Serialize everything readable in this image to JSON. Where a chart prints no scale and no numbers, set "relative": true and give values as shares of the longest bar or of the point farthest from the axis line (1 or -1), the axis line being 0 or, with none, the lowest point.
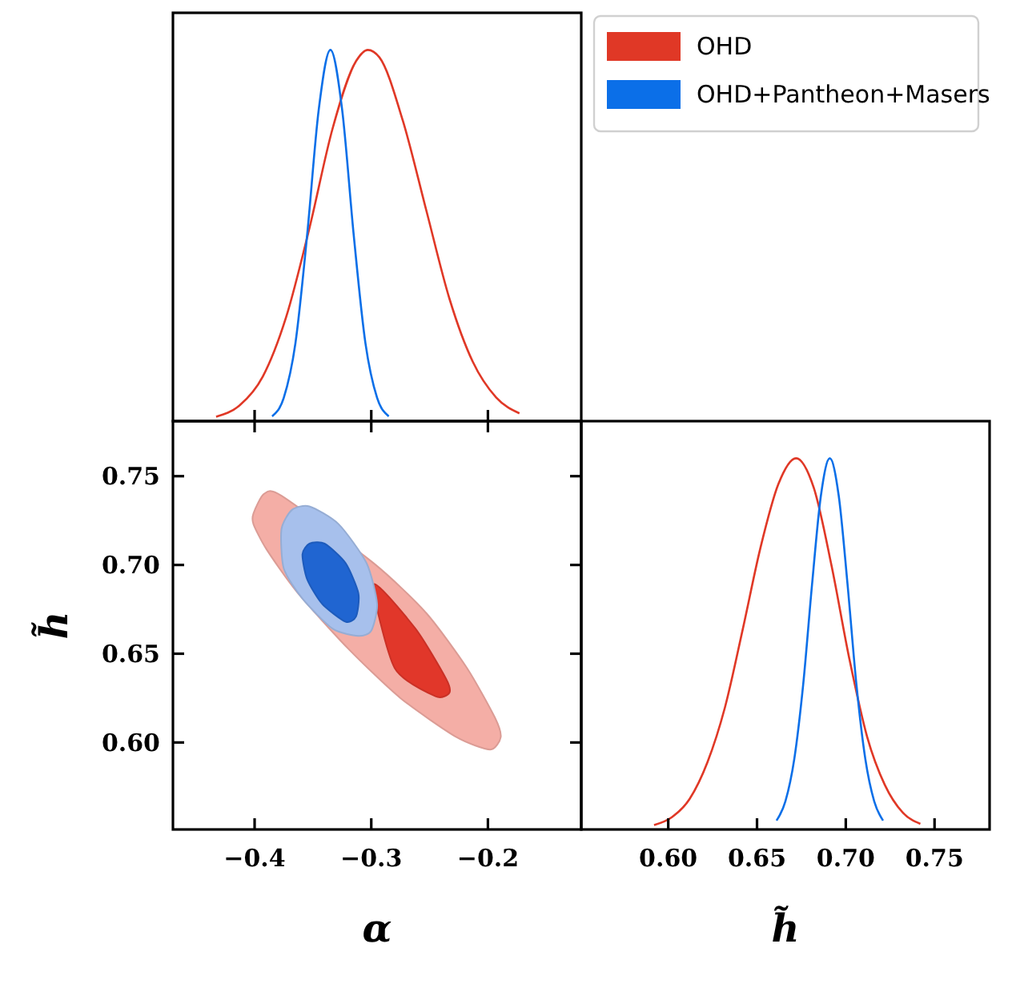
{
  "chart_data": [
    {
      "type": "line",
      "relative": true,
      "tick_labels": false,
      "legend": "top right",
      "xlim": [
        -0.47,
        -0.12
      ],
      "xticks": [
        {
          "value": -0.4,
          "label": null
        },
        {
          "value": -0.3,
          "label": null
        },
        {
          "value": -0.2,
          "label": null
        }
      ],
      "series": [
        {
          "name": "OHD",
          "color": "#e03826",
          "x": [
            -0.433,
            -0.413,
            -0.393,
            -0.373,
            -0.353,
            -0.333,
            -0.313,
            -0.303,
            -0.293,
            -0.273,
            -0.253,
            -0.233,
            -0.213,
            -0.193,
            -0.173
          ],
          "values": [
            0.012,
            0.042,
            0.12,
            0.28,
            0.52,
            0.79,
            0.97,
            1,
            0.98,
            0.81,
            0.57,
            0.33,
            0.16,
            0.064,
            0.021
          ]
        },
        {
          "name": "OHD+Pantheon+Masers",
          "color": "#0b6fe8",
          "x": [
            -0.385,
            -0.375,
            -0.365,
            -0.355,
            -0.345,
            -0.335,
            -0.325,
            -0.315,
            -0.305,
            -0.295,
            -0.285
          ],
          "values": [
            0.013,
            0.063,
            0.21,
            0.5,
            0.84,
            1,
            0.84,
            0.5,
            0.21,
            0.063,
            0.013
          ]
        }
      ]
    },
    {
      "type": "area",
      "xlabel": "α",
      "ylabel": "h̃",
      "xlim": [
        -0.47,
        -0.12
      ],
      "ylim": [
        0.551,
        0.781
      ],
      "xticks": [
        {
          "value": -0.4,
          "label": "−0.4"
        },
        {
          "value": -0.3,
          "label": "−0.3"
        },
        {
          "value": -0.2,
          "label": "−0.2"
        }
      ],
      "yticks": [
        {
          "value": 0.6,
          "label": "0.60"
        },
        {
          "value": 0.65,
          "label": "0.65"
        },
        {
          "value": 0.7,
          "label": "0.70"
        },
        {
          "value": 0.75,
          "label": "0.75"
        }
      ],
      "series": [
        {
          "color": "#f4aea6",
          "x": [
            -0.401,
            -0.392,
            -0.377,
            -0.298,
            -0.253,
            -0.218,
            -0.194,
            -0.189,
            -0.198,
            -0.227,
            -0.275,
            -0.32,
            -0.364,
            -0.39,
            -0.401
          ],
          "values": [
            0.729,
            0.74,
            0.739,
            0.701,
            0.673,
            0.642,
            0.614,
            0.603,
            0.596,
            0.603,
            0.625,
            0.653,
            0.685,
            0.709,
            0.723
          ]
        },
        {
          "color": "#e1372a",
          "x": [
            -0.298,
            -0.262,
            -0.236,
            -0.233,
            -0.245,
            -0.28
          ],
          "values": [
            0.689,
            0.664,
            0.636,
            0.628,
            0.626,
            0.642
          ]
        },
        {
          "color": "#a7c0ec",
          "x": [
            -0.377,
            -0.368,
            -0.353,
            -0.328,
            -0.304,
            -0.295,
            -0.3,
            -0.311,
            -0.333,
            -0.359,
            -0.375
          ],
          "values": [
            0.72,
            0.731,
            0.733,
            0.723,
            0.701,
            0.678,
            0.663,
            0.66,
            0.664,
            0.681,
            0.698
          ]
        },
        {
          "color": "#2065d1",
          "x": [
            -0.359,
            -0.353,
            -0.34,
            -0.322,
            -0.311,
            -0.313,
            -0.322,
            -0.342,
            -0.355
          ],
          "values": [
            0.706,
            0.712,
            0.712,
            0.701,
            0.684,
            0.671,
            0.668,
            0.678,
            0.692
          ]
        }
      ]
    },
    {
      "type": "line",
      "relative": true,
      "tick_labels": "x",
      "xlabel": "h̃",
      "xlim": [
        0.551,
        0.781
      ],
      "xticks": [
        {
          "value": 0.6,
          "label": "0.60"
        },
        {
          "value": 0.65,
          "label": "0.65"
        },
        {
          "value": 0.7,
          "label": "0.70"
        },
        {
          "value": 0.75,
          "label": "0.75"
        }
      ],
      "series": [
        {
          "color": "#e03826",
          "x": [
            0.592,
            0.602,
            0.612,
            0.622,
            0.632,
            0.642,
            0.652,
            0.662,
            0.672,
            0.682,
            0.692,
            0.702,
            0.712,
            0.722,
            0.732,
            0.742
          ],
          "values": [
            0.012,
            0.033,
            0.082,
            0.18,
            0.33,
            0.54,
            0.76,
            0.93,
            1,
            0.92,
            0.71,
            0.46,
            0.25,
            0.12,
            0.046,
            0.015
          ]
        },
        {
          "color": "#0b6fe8",
          "x": [
            0.661,
            0.666,
            0.671,
            0.676,
            0.681,
            0.686,
            0.691,
            0.696,
            0.701,
            0.706,
            0.711,
            0.716,
            0.721
          ],
          "values": [
            0.024,
            0.076,
            0.19,
            0.39,
            0.66,
            0.9,
            1,
            0.9,
            0.66,
            0.39,
            0.19,
            0.076,
            0.024
          ]
        }
      ]
    }
  ]
}
